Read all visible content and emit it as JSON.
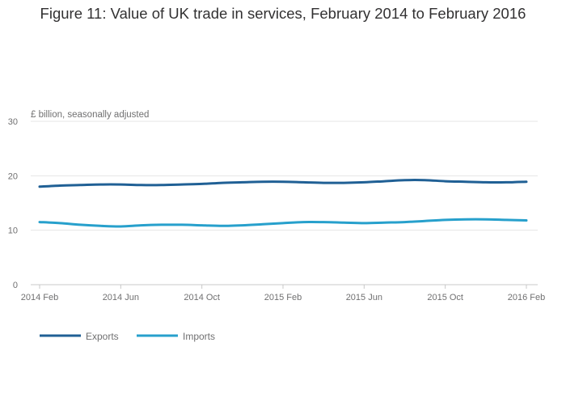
{
  "chart_data": {
    "type": "line",
    "title": "Figure 11: Value of UK trade in services, February 2014 to February 2016",
    "ylabel": "£ billion, seasonally adjusted",
    "xlabel": "",
    "ylim": [
      0,
      30
    ],
    "yticks": [
      0,
      10,
      20,
      30
    ],
    "x_months": [
      "2014 Feb",
      "2014 Mar",
      "2014 Apr",
      "2014 May",
      "2014 Jun",
      "2014 Jul",
      "2014 Aug",
      "2014 Sep",
      "2014 Oct",
      "2014 Nov",
      "2014 Dec",
      "2015 Jan",
      "2015 Feb",
      "2015 Mar",
      "2015 Apr",
      "2015 May",
      "2015 Jun",
      "2015 Jul",
      "2015 Aug",
      "2015 Sep",
      "2015 Oct",
      "2015 Nov",
      "2015 Dec",
      "2016 Jan",
      "2016 Feb"
    ],
    "xtick_labels": [
      "2014 Feb",
      "2014 Jun",
      "2014 Oct",
      "2015 Feb",
      "2015 Jun",
      "2015 Oct",
      "2016 Feb"
    ],
    "xtick_indices": [
      0,
      4,
      8,
      12,
      16,
      20,
      24
    ],
    "series": [
      {
        "name": "Exports",
        "color": "#206095",
        "values": [
          18.0,
          18.2,
          18.3,
          18.4,
          18.4,
          18.3,
          18.3,
          18.4,
          18.5,
          18.7,
          18.8,
          18.9,
          18.9,
          18.8,
          18.7,
          18.7,
          18.8,
          19.0,
          19.2,
          19.2,
          19.0,
          18.9,
          18.8,
          18.8,
          18.9
        ]
      },
      {
        "name": "Imports",
        "color": "#27a0cc",
        "values": [
          11.5,
          11.3,
          11.0,
          10.8,
          10.7,
          10.9,
          11.0,
          11.0,
          10.9,
          10.8,
          10.9,
          11.1,
          11.3,
          11.5,
          11.5,
          11.4,
          11.3,
          11.4,
          11.5,
          11.7,
          11.9,
          12.0,
          12.0,
          11.9,
          11.8
        ]
      }
    ],
    "legend_position": "bottom-left",
    "grid": true
  }
}
